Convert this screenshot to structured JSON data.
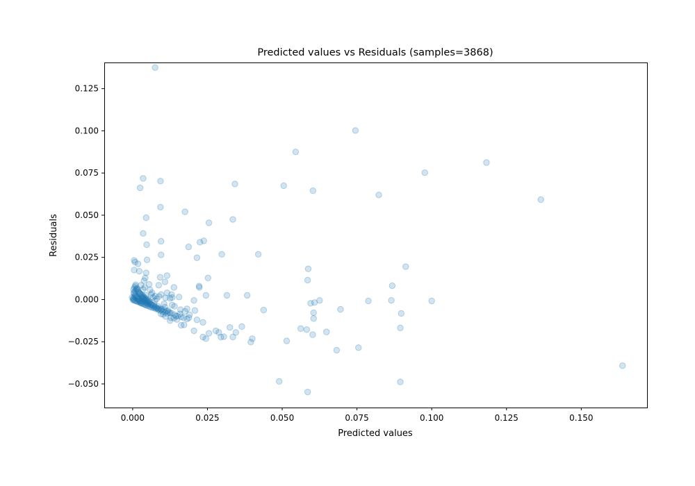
{
  "chart_data": {
    "type": "scatter",
    "title": "Predicted values vs Residuals (samples=3868)",
    "xlabel": "Predicted values",
    "ylabel": "Residuals",
    "xlim": [
      -0.0095,
      0.172
    ],
    "ylim": [
      -0.064,
      0.1405
    ],
    "xticks": [
      {
        "value": 0.0,
        "label": "0.000"
      },
      {
        "value": 0.025,
        "label": "0.025"
      },
      {
        "value": 0.05,
        "label": "0.050"
      },
      {
        "value": 0.075,
        "label": "0.075"
      },
      {
        "value": 0.1,
        "label": "0.100"
      },
      {
        "value": 0.125,
        "label": "0.125"
      },
      {
        "value": 0.15,
        "label": "0.150"
      }
    ],
    "yticks": [
      {
        "value": -0.05,
        "label": "−0.050"
      },
      {
        "value": -0.025,
        "label": "−0.025"
      },
      {
        "value": 0.0,
        "label": "0.000"
      },
      {
        "value": 0.025,
        "label": "0.025"
      },
      {
        "value": 0.05,
        "label": "0.050"
      },
      {
        "value": 0.075,
        "label": "0.075"
      },
      {
        "value": 0.1,
        "label": "0.100"
      },
      {
        "value": 0.125,
        "label": "0.125"
      }
    ],
    "grid": false,
    "marker": "circle",
    "color": "#1f77b4",
    "alpha": 0.2,
    "series": [
      {
        "points": [
          [
            0.0075,
            0.1375
          ],
          [
            0.0745,
            0.1002
          ],
          [
            0.0545,
            0.0875
          ],
          [
            0.1183,
            0.0812
          ],
          [
            0.0977,
            0.0752
          ],
          [
            0.0035,
            0.0718
          ],
          [
            0.0093,
            0.0702
          ],
          [
            0.0025,
            0.0662
          ],
          [
            0.0342,
            0.0685
          ],
          [
            0.0505,
            0.0675
          ],
          [
            0.0603,
            0.0645
          ],
          [
            0.0823,
            0.062
          ],
          [
            0.1365,
            0.0592
          ],
          [
            0.0093,
            0.0548
          ],
          [
            0.0175,
            0.052
          ],
          [
            0.0045,
            0.0485
          ],
          [
            0.0255,
            0.0455
          ],
          [
            0.0335,
            0.0475
          ],
          [
            0.0035,
            0.0392
          ],
          [
            0.0095,
            0.0345
          ],
          [
            0.0238,
            0.0348
          ],
          [
            0.0225,
            0.034
          ],
          [
            0.0047,
            0.0325
          ],
          [
            0.0187,
            0.0312
          ],
          [
            0.0095,
            0.0265
          ],
          [
            0.0298,
            0.0268
          ],
          [
            0.042,
            0.0268
          ],
          [
            0.0215,
            0.0248
          ],
          [
            0.0048,
            0.0235
          ],
          [
            0.0005,
            0.0232
          ],
          [
            0.0008,
            0.0222
          ],
          [
            0.0018,
            0.0212
          ],
          [
            0.0005,
            0.0175
          ],
          [
            0.0022,
            0.0168
          ],
          [
            0.0045,
            0.0158
          ],
          [
            0.0115,
            0.0142
          ],
          [
            0.0092,
            0.0132
          ],
          [
            0.0042,
            0.0128
          ],
          [
            0.0252,
            0.0128
          ],
          [
            0.0587,
            0.0182
          ],
          [
            0.0585,
            0.0115
          ],
          [
            0.0913,
            0.0195
          ],
          [
            0.0868,
            0.0082
          ],
          [
            0.0038,
            0.0112
          ],
          [
            0.0108,
            0.0105
          ],
          [
            0.0138,
            0.0072
          ],
          [
            0.0222,
            0.008
          ],
          [
            0.0223,
            0.0072
          ],
          [
            0.0055,
            0.009
          ],
          [
            0.0087,
            0.0085
          ],
          [
            0.001,
            0.0088
          ],
          [
            0.0155,
            0.0015
          ],
          [
            0.0205,
            -0.0005
          ],
          [
            0.0245,
            0.0025
          ],
          [
            0.0315,
            0.0025
          ],
          [
            0.0383,
            0.0025
          ],
          [
            0.0625,
            -0.0005
          ],
          [
            0.0595,
            -0.0022
          ],
          [
            0.0608,
            -0.0018
          ],
          [
            0.0788,
            -0.0008
          ],
          [
            0.0865,
            -0.0005
          ],
          [
            0.1,
            -0.0008
          ],
          [
            0.0438,
            -0.0062
          ],
          [
            0.0695,
            -0.0058
          ],
          [
            0.0605,
            -0.0078
          ],
          [
            0.0898,
            -0.0082
          ],
          [
            0.0605,
            -0.0112
          ],
          [
            0.0895,
            -0.0168
          ],
          [
            0.0562,
            -0.0172
          ],
          [
            0.0582,
            -0.0178
          ],
          [
            0.0648,
            -0.0192
          ],
          [
            0.0602,
            -0.0208
          ],
          [
            0.0515,
            -0.0245
          ],
          [
            0.0755,
            -0.0285
          ],
          [
            0.0682,
            -0.03
          ],
          [
            0.049,
            -0.0485
          ],
          [
            0.0895,
            -0.0488
          ],
          [
            0.0585,
            -0.0548
          ],
          [
            0.1638,
            -0.0392
          ],
          [
            0.0365,
            -0.016
          ],
          [
            0.0325,
            -0.0165
          ],
          [
            0.0278,
            -0.0185
          ],
          [
            0.0288,
            -0.0195
          ],
          [
            0.0345,
            -0.0195
          ],
          [
            0.0255,
            -0.02
          ],
          [
            0.0305,
            -0.022
          ],
          [
            0.0335,
            -0.0222
          ],
          [
            0.0295,
            -0.0222
          ],
          [
            0.0235,
            -0.0222
          ],
          [
            0.0245,
            -0.0232
          ],
          [
            0.04,
            -0.0232
          ],
          [
            0.0395,
            -0.0252
          ],
          [
            0.0182,
            -0.0115
          ],
          [
            0.0172,
            -0.015
          ],
          [
            0.0188,
            -0.0108
          ],
          [
            0.0215,
            -0.012
          ],
          [
            0.0235,
            -0.0135
          ],
          [
            0.0205,
            -0.0185
          ],
          [
            0.0162,
            -0.0152
          ],
          [
            0.0208,
            -0.0065
          ],
          [
            0.0182,
            -0.0055
          ],
          [
            0.0158,
            -0.0085
          ],
          [
            0.0162,
            -0.0102
          ],
          [
            0.0145,
            -0.0098
          ],
          [
            0.0125,
            -0.008
          ],
          [
            0.0118,
            -0.0065
          ],
          [
            0.0132,
            -0.0032
          ],
          [
            0.0108,
            -0.0045
          ],
          [
            0.0095,
            -0.0058
          ],
          [
            0.0085,
            -0.004
          ],
          [
            0.0072,
            -0.003
          ],
          [
            0.0062,
            -0.0028
          ],
          [
            0.0125,
            -0.0125
          ],
          [
            0.0138,
            -0.011
          ],
          [
            0.0102,
            -0.0088
          ],
          [
            0.0085,
            -0.0055
          ],
          [
            0.0105,
            -0.0025
          ],
          [
            0.0088,
            0.0018
          ],
          [
            0.011,
            0.001
          ],
          [
            0.0125,
            0.0008
          ],
          [
            0.0132,
            0.0012
          ],
          [
            0.0065,
            0.004
          ],
          [
            0.0075,
            0.002
          ],
          [
            0.0045,
            0.0025
          ],
          [
            0.0052,
            -0.0015
          ],
          [
            0.0032,
            -0.0012
          ],
          [
            0.0028,
            -0.002
          ],
          [
            0.0022,
            -0.0008
          ],
          [
            0.0018,
            0.0005
          ],
          [
            0.0015,
            0.0015
          ],
          [
            0.0012,
            0.0022
          ],
          [
            0.0008,
            0.0028
          ],
          [
            0.0005,
            0.0035
          ],
          [
            0.0003,
            0.001
          ],
          [
            0.0001,
            -0.0002
          ],
          [
            -0.0002,
            0.0012
          ],
          [
            0.0006,
            -0.0005
          ],
          [
            0.001,
            -0.0008
          ],
          [
            0.0014,
            -0.001
          ],
          [
            0.0018,
            -0.0013
          ],
          [
            0.0022,
            -0.0016
          ],
          [
            0.0026,
            -0.0019
          ],
          [
            0.003,
            -0.0022
          ],
          [
            0.0034,
            -0.0025
          ],
          [
            0.0038,
            -0.0028
          ],
          [
            0.0042,
            -0.0031
          ],
          [
            0.0046,
            -0.0034
          ],
          [
            0.005,
            -0.0036
          ],
          [
            0.0055,
            -0.004
          ],
          [
            0.006,
            -0.0044
          ],
          [
            0.0066,
            -0.0047
          ],
          [
            0.0072,
            -0.0051
          ],
          [
            0.0078,
            -0.0055
          ],
          [
            0.0085,
            -0.006
          ],
          [
            0.0092,
            -0.0065
          ],
          [
            0.01,
            -0.007
          ],
          [
            0.0108,
            -0.0076
          ],
          [
            0.0116,
            -0.0082
          ],
          [
            0.0004,
            0.0042
          ],
          [
            0.0008,
            0.005
          ],
          [
            0.0012,
            0.0058
          ],
          [
            0.0016,
            0.0064
          ],
          [
            0.002,
            0.0046
          ],
          [
            0.0024,
            0.0036
          ],
          [
            0.0028,
            0.003
          ],
          [
            0.0032,
            0.0026
          ],
          [
            0.0036,
            0.0018
          ],
          [
            0.004,
            0.0012
          ],
          [
            0.0044,
            0.0006
          ],
          [
            0.0048,
            0.0001
          ],
          [
            0.0052,
            -0.0006
          ],
          [
            0.0056,
            -0.001
          ],
          [
            0.0003,
            0.006
          ],
          [
            0.0006,
            0.0072
          ],
          [
            0.0009,
            0.008
          ],
          [
            0.0013,
            0.0066
          ],
          [
            0.0017,
            0.0054
          ],
          [
            0.0021,
            0.004
          ],
          [
            0.0025,
            0.0032
          ],
          [
            0.0029,
            0.002
          ],
          [
            0.0033,
            0.0014
          ],
          [
            0.0037,
            0.0006
          ],
          [
            0.0041,
            0.0
          ],
          [
            0.0045,
            -0.0004
          ],
          [
            0.0049,
            -0.0012
          ],
          [
            0.0053,
            -0.0018
          ],
          [
            0.0057,
            -0.0022
          ],
          [
            0.0061,
            -0.003
          ],
          [
            0.0065,
            -0.0034
          ],
          [
            0.0069,
            -0.0038
          ],
          [
            0.0073,
            -0.0042
          ],
          [
            0.0077,
            -0.0046
          ],
          [
            0.0081,
            -0.005
          ],
          [
            0.0089,
            -0.0052
          ],
          [
            0.0097,
            -0.0058
          ],
          [
            0.0105,
            -0.0062
          ],
          [
            0.0113,
            -0.0068
          ],
          [
            0.0121,
            -0.0074
          ],
          [
            0.013,
            -0.008
          ],
          [
            0.014,
            -0.009
          ],
          [
            0.015,
            -0.0098
          ],
          [
            0.0002,
            0.0004
          ],
          [
            0.0004,
            -0.0003
          ],
          [
            0.0007,
            0.0018
          ],
          [
            0.0011,
            0.0012
          ],
          [
            0.0015,
            0.0006
          ],
          [
            0.0019,
            0.0
          ],
          [
            0.0023,
            -0.0004
          ],
          [
            0.0027,
            -0.0008
          ],
          [
            0.0031,
            0.0008
          ],
          [
            0.0035,
            0.0004
          ],
          [
            0.0039,
            -0.0008
          ],
          [
            0.0043,
            -0.0016
          ],
          [
            0.0047,
            -0.0022
          ],
          [
            0.0051,
            -0.0026
          ],
          [
            0.0035,
            0.006
          ],
          [
            0.004,
            0.0072
          ],
          [
            0.0028,
            0.0085
          ],
          [
            0.0058,
            0.0058
          ],
          [
            0.0062,
            0.003
          ],
          [
            0.0068,
            0.0012
          ],
          [
            0.0074,
            -0.0008
          ],
          [
            0.008,
            0.0004
          ],
          [
            0.0095,
            0.003
          ],
          [
            0.0115,
            0.004
          ],
          [
            0.013,
            0.003
          ],
          [
            0.014,
            -0.004
          ],
          [
            0.016,
            -0.006
          ],
          [
            0.0175,
            -0.007
          ],
          [
            0.019,
            -0.009
          ],
          [
            0.0128,
            -0.0108
          ],
          [
            0.0148,
            -0.0118
          ],
          [
            0.017,
            -0.0108
          ],
          [
            0.011,
            -0.01
          ],
          [
            0.0095,
            -0.0085
          ]
        ]
      }
    ]
  }
}
